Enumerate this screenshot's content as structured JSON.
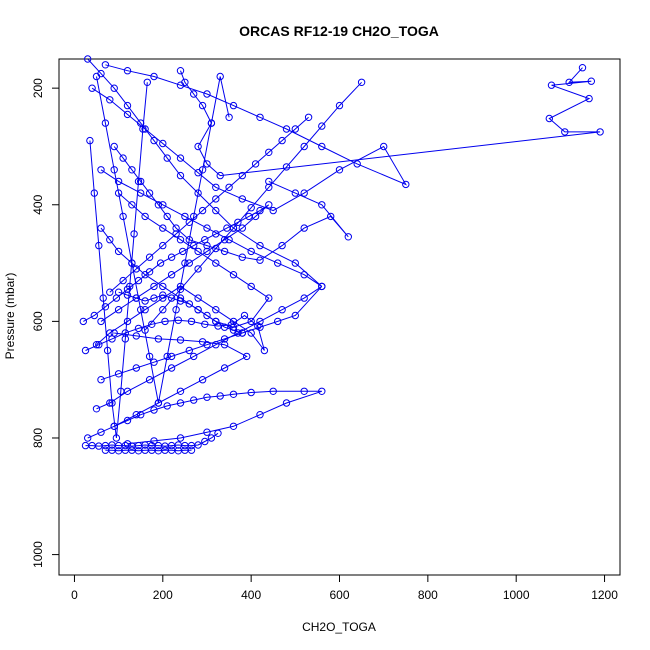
{
  "chart_data": {
    "type": "scatter",
    "title": "ORCAS RF12-19 CH2O_TOGA",
    "xlabel": "CH2O_TOGA",
    "ylabel": "Pressure (mbar)",
    "xlim": [
      -35,
      1235
    ],
    "ylim": [
      1035,
      150
    ],
    "y_reversed": true,
    "grid": false,
    "legend": "none",
    "color": "#0000ee",
    "x_ticks": [
      0,
      200,
      400,
      600,
      800,
      1000,
      1200
    ],
    "y_ticks": [
      200,
      400,
      600,
      800,
      1000
    ],
    "x_tick_labels": [
      "0",
      "200",
      "400",
      "600",
      "800",
      "1000",
      "1200"
    ],
    "y_tick_labels": [
      "200",
      "400",
      "600",
      "800",
      "1000"
    ],
    "series": [
      {
        "x": [
          1150,
          1120,
          1170,
          1080,
          1165,
          1075,
          1110,
          1190,
          330,
          300,
          280,
          310,
          290,
          270,
          250,
          240
        ],
        "y": [
          165,
          190,
          188,
          195,
          218,
          252,
          275,
          275,
          350,
          330,
          300,
          260,
          230,
          210,
          190,
          170
        ]
      },
      {
        "x": [
          30,
          60,
          90,
          120,
          150,
          180,
          210,
          240,
          280,
          320,
          360,
          420,
          500,
          560,
          520,
          460,
          400,
          350,
          300,
          250,
          200,
          150,
          100,
          60
        ],
        "y": [
          150,
          175,
          200,
          230,
          260,
          290,
          320,
          350,
          380,
          410,
          440,
          470,
          500,
          540,
          520,
          500,
          480,
          460,
          440,
          420,
          400,
          380,
          360,
          340
        ]
      },
      {
        "x": [
          40,
          80,
          120,
          160,
          200,
          240,
          280,
          320,
          380,
          450,
          520,
          600,
          700,
          750,
          640,
          560,
          480,
          420,
          360,
          300,
          240,
          180,
          120,
          70
        ],
        "y": [
          200,
          220,
          245,
          270,
          295,
          320,
          345,
          370,
          390,
          410,
          380,
          340,
          300,
          365,
          330,
          300,
          270,
          250,
          230,
          210,
          195,
          180,
          170,
          160
        ]
      },
      {
        "x": [
          20,
          45,
          70,
          95,
          120,
          145,
          170,
          195,
          220,
          245,
          270,
          295,
          320,
          345,
          370,
          395,
          420,
          440,
          410,
          380,
          340,
          300,
          260,
          220,
          180,
          140,
          100,
          60
        ],
        "y": [
          600,
          590,
          575,
          560,
          545,
          530,
          515,
          500,
          490,
          480,
          470,
          460,
          450,
          440,
          430,
          420,
          410,
          400,
          420,
          440,
          460,
          480,
          500,
          520,
          540,
          560,
          580,
          600
        ]
      },
      {
        "x": [
          25,
          55,
          85,
          115,
          145,
          175,
          205,
          235,
          265,
          295,
          325,
          355,
          385,
          415,
          430,
          400,
          360,
          320,
          280,
          240,
          200,
          160,
          120,
          80,
          50
        ],
        "y": [
          650,
          640,
          630,
          620,
          612,
          605,
          600,
          598,
          600,
          605,
          608,
          606,
          590,
          608,
          650,
          620,
          600,
          580,
          560,
          540,
          560,
          580,
          600,
          620,
          640
        ]
      },
      {
        "x": [
          60,
          100,
          140,
          180,
          220,
          260,
          300,
          340,
          380,
          420,
          460,
          500,
          560,
          520,
          470,
          420,
          370,
          320,
          270,
          220,
          170,
          120,
          80,
          50
        ],
        "y": [
          700,
          690,
          680,
          670,
          660,
          650,
          640,
          630,
          620,
          610,
          600,
          590,
          540,
          560,
          580,
          600,
          620,
          640,
          660,
          680,
          700,
          720,
          740,
          750
        ]
      },
      {
        "x": [
          30,
          60,
          90,
          120,
          150,
          180,
          210,
          240,
          270,
          300,
          330,
          360,
          400,
          450,
          520,
          560,
          480,
          420,
          360,
          300,
          240,
          180,
          120
        ],
        "y": [
          800,
          790,
          780,
          770,
          760,
          752,
          745,
          740,
          735,
          730,
          728,
          725,
          722,
          720,
          720,
          720,
          740,
          760,
          780,
          790,
          800,
          805,
          810
        ]
      },
      {
        "x": [
          25,
          40,
          55,
          70,
          85,
          100,
          115,
          130,
          145,
          160,
          175,
          190,
          205,
          220,
          235,
          250,
          265,
          280,
          295,
          310,
          325
        ],
        "y": [
          813,
          813,
          814,
          813,
          812,
          813,
          813,
          814,
          813,
          812,
          813,
          813,
          814,
          813,
          812,
          813,
          813,
          812,
          806,
          800,
          792
        ]
      },
      {
        "x": [
          70,
          85,
          100,
          115,
          130,
          145,
          160,
          175,
          190,
          205,
          220,
          235,
          250,
          265
        ],
        "y": [
          821,
          821,
          822,
          821,
          821,
          822,
          821,
          821,
          822,
          821,
          821,
          822,
          821,
          821
        ]
      },
      {
        "x": [
          60,
          80,
          100,
          130,
          160,
          200,
          240,
          280,
          320,
          360,
          400,
          440,
          400,
          360,
          320,
          280,
          240,
          200,
          160,
          130,
          100
        ],
        "y": [
          440,
          460,
          480,
          500,
          520,
          540,
          560,
          580,
          600,
          610,
          600,
          560,
          540,
          520,
          500,
          480,
          460,
          440,
          420,
          400,
          380
        ]
      },
      {
        "x": [
          90,
          110,
          130,
          150,
          170,
          190,
          210,
          230,
          260,
          300,
          340,
          380,
          420,
          470,
          520,
          580,
          620,
          560,
          500,
          440
        ],
        "y": [
          300,
          320,
          340,
          360,
          380,
          400,
          420,
          440,
          460,
          470,
          480,
          490,
          495,
          470,
          440,
          420,
          455,
          400,
          380,
          360
        ]
      },
      {
        "x": [
          50,
          70,
          90,
          110,
          130,
          150,
          170,
          190,
          210,
          230,
          250,
          270,
          290,
          310,
          330,
          350
        ],
        "y": [
          180,
          260,
          340,
          420,
          500,
          580,
          660,
          740,
          660,
          580,
          500,
          420,
          340,
          260,
          180,
          250
        ]
      },
      {
        "x": [
          35,
          45,
          55,
          65,
          75,
          85,
          95,
          105,
          115,
          125,
          135,
          145,
          155,
          165
        ],
        "y": [
          290,
          380,
          470,
          560,
          650,
          740,
          800,
          720,
          630,
          540,
          450,
          360,
          270,
          190
        ]
      },
      {
        "x": [
          100,
          120,
          140,
          160,
          180,
          200,
          220,
          240,
          260,
          280,
          300,
          320,
          340,
          360,
          380
        ],
        "y": [
          550,
          555,
          560,
          565,
          560,
          555,
          560,
          565,
          570,
          580,
          590,
          600,
          610,
          615,
          620
        ]
      },
      {
        "x": [
          530,
          500,
          470,
          440,
          410,
          380,
          350,
          320,
          290,
          260,
          230,
          200,
          170,
          140,
          110,
          80
        ],
        "y": [
          250,
          270,
          290,
          310,
          330,
          350,
          370,
          390,
          410,
          430,
          450,
          470,
          490,
          510,
          530,
          550
        ]
      },
      {
        "x": [
          650,
          600,
          560,
          520,
          480,
          440,
          400,
          360,
          320,
          280,
          240,
          200,
          160
        ],
        "y": [
          190,
          230,
          265,
          300,
          335,
          370,
          405,
          440,
          475,
          510,
          545,
          580,
          615
        ]
      },
      {
        "x": [
          90,
          140,
          190,
          240,
          290,
          340,
          390,
          340,
          290,
          240,
          190,
          140,
          90
        ],
        "y": [
          620,
          625,
          630,
          632,
          635,
          640,
          660,
          680,
          700,
          720,
          740,
          760,
          780
        ]
      }
    ]
  }
}
